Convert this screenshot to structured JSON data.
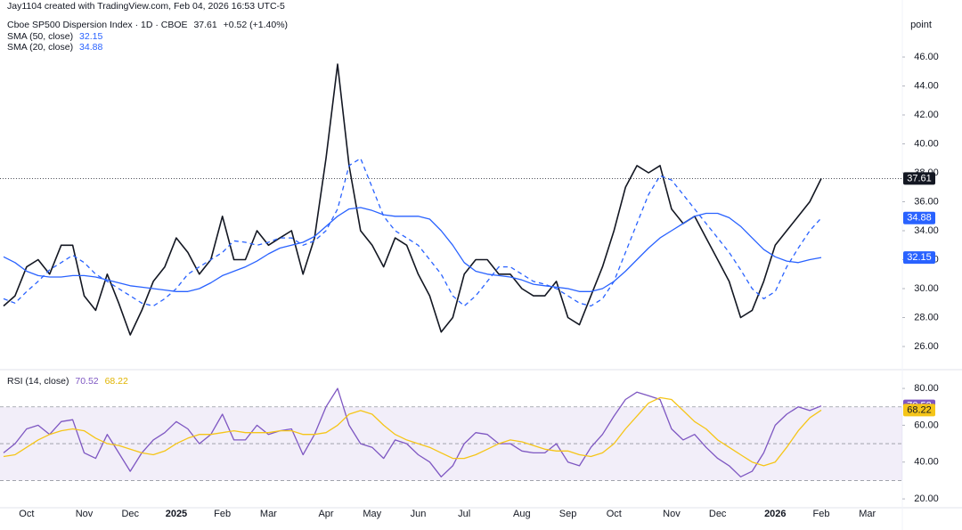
{
  "header": {
    "credit": "Jay1104 created with TradingView.com, Feb 04, 2026 16:53 UTC-5"
  },
  "chart_data": [
    {
      "type": "line",
      "change": "+0.52 (+1.40%)",
      "y_unit": "point",
      "ylim": [
        24.4,
        49.94
      ],
      "yticks": [
        {
          "value": 26,
          "label": "26.00"
        },
        {
          "value": 28,
          "label": "28.00"
        },
        {
          "value": 30,
          "label": "30.00"
        },
        {
          "value": 32,
          "label": "32.00"
        },
        {
          "value": 34,
          "label": "34.00"
        },
        {
          "value": 36,
          "label": "36.00"
        },
        {
          "value": 38,
          "label": "38.00"
        },
        {
          "value": 40,
          "label": "40.00"
        },
        {
          "value": 42,
          "label": "42.00"
        },
        {
          "value": 44,
          "label": "44.00"
        },
        {
          "value": 46,
          "label": "46.00"
        }
      ],
      "grid": false,
      "price_line": true,
      "series": [
        {
          "name": "Cboe SP500 Dispersion Index · 1D · CBOE",
          "color": "#131722",
          "dash": false,
          "values": [
            28.8,
            29.5,
            31.5,
            32.0,
            31.0,
            33.0,
            33.0,
            29.5,
            28.5,
            31.0,
            29.0,
            26.8,
            28.5,
            30.5,
            31.5,
            33.5,
            32.5,
            31.0,
            32.0,
            35.0,
            32.0,
            32.0,
            34.0,
            33.0,
            33.5,
            34.0,
            31.0,
            33.5,
            39.0,
            45.5,
            38.5,
            34.0,
            33.0,
            31.5,
            33.5,
            33.0,
            31.0,
            29.5,
            27.0,
            28.0,
            31.0,
            32.0,
            32.0,
            31.0,
            31.0,
            30.0,
            29.5,
            29.5,
            30.5,
            28.0,
            27.5,
            29.5,
            31.5,
            34.0,
            37.0,
            38.5,
            38.0,
            38.5,
            35.5,
            34.5,
            35.0,
            33.5,
            32.0,
            30.5,
            28.0,
            28.5,
            30.5,
            33.0,
            34.0,
            35.0,
            36.0,
            37.61,
            null,
            null,
            null,
            null,
            null,
            null
          ]
        },
        {
          "name": "SMA (50, close)",
          "color": "#2962ff",
          "dash": false,
          "values": [
            32.2,
            31.8,
            31.2,
            30.9,
            30.8,
            30.8,
            30.9,
            30.9,
            30.8,
            30.6,
            30.4,
            30.2,
            30.1,
            30.0,
            29.9,
            29.8,
            29.8,
            30.0,
            30.4,
            30.9,
            31.2,
            31.5,
            31.9,
            32.4,
            32.8,
            33.0,
            33.2,
            33.6,
            34.3,
            35.0,
            35.5,
            35.6,
            35.4,
            35.1,
            35.0,
            35.0,
            35.0,
            34.8,
            34.0,
            33.0,
            31.8,
            31.2,
            31.0,
            30.9,
            30.8,
            30.6,
            30.3,
            30.2,
            30.1,
            30.0,
            29.8,
            29.8,
            30.0,
            30.5,
            31.2,
            32.0,
            32.8,
            33.5,
            34.0,
            34.5,
            35.0,
            35.2,
            35.2,
            34.9,
            34.3,
            33.5,
            32.7,
            32.2,
            31.9,
            31.8,
            32.0,
            32.15,
            null,
            null,
            null,
            null,
            null,
            null
          ]
        },
        {
          "name": "SMA (20, close)",
          "color": "#2962ff",
          "dash": true,
          "values": [
            29.3,
            29.0,
            29.8,
            30.5,
            31.3,
            31.8,
            32.3,
            31.8,
            31.0,
            30.5,
            30.0,
            29.5,
            29.0,
            28.8,
            29.3,
            30.0,
            31.0,
            31.5,
            32.0,
            32.5,
            33.3,
            33.2,
            33.0,
            33.2,
            33.5,
            33.5,
            33.0,
            33.3,
            34.0,
            35.5,
            38.5,
            39.0,
            37.0,
            35.0,
            34.0,
            33.5,
            33.0,
            32.0,
            31.0,
            29.5,
            28.8,
            29.5,
            30.5,
            31.5,
            31.5,
            31.0,
            30.5,
            30.3,
            30.0,
            29.5,
            29.0,
            28.8,
            29.3,
            30.5,
            32.5,
            34.5,
            36.5,
            37.8,
            37.5,
            36.5,
            35.5,
            34.5,
            33.5,
            32.5,
            31.3,
            30.0,
            29.3,
            29.8,
            31.5,
            32.8,
            34.0,
            34.88,
            null,
            null,
            null,
            null,
            null,
            null
          ]
        }
      ]
    },
    {
      "type": "line",
      "title": "RSI (14, close)",
      "categories": [
        null,
        null,
        "Oct",
        null,
        null,
        null,
        null,
        "Nov",
        null,
        null,
        null,
        "Dec",
        null,
        null,
        null,
        "2025",
        null,
        null,
        null,
        "Feb",
        null,
        null,
        null,
        "Mar",
        null,
        null,
        null,
        null,
        "Apr",
        null,
        null,
        null,
        "May",
        null,
        null,
        null,
        "Jun",
        null,
        null,
        null,
        "Jul",
        null,
        null,
        null,
        null,
        "Aug",
        null,
        null,
        null,
        "Sep",
        null,
        null,
        null,
        "Oct",
        null,
        null,
        null,
        null,
        "Nov",
        null,
        null,
        null,
        "Dec",
        null,
        null,
        null,
        null,
        "2026",
        null,
        null,
        null,
        "Feb",
        null,
        null,
        null,
        "Mar",
        null,
        null
      ],
      "ylim": [
        15.2,
        90.2
      ],
      "yticks": [
        {
          "value": 20,
          "label": "20.00"
        },
        {
          "value": 40,
          "label": "40.00"
        },
        {
          "value": 60,
          "label": "60.00"
        },
        {
          "value": 80,
          "label": "80.00"
        }
      ],
      "bands": [
        30,
        70
      ],
      "midline": 50,
      "band_color": "#7e57c2",
      "series": [
        {
          "color": "#7e57c2",
          "values": [
            45,
            50,
            58,
            60,
            55,
            62,
            63,
            45,
            42,
            55,
            45,
            35,
            45,
            52,
            56,
            62,
            58,
            50,
            55,
            66,
            52,
            52,
            60,
            55,
            57,
            58,
            44,
            55,
            70,
            80,
            60,
            50,
            48,
            42,
            52,
            50,
            44,
            40,
            32,
            38,
            50,
            56,
            55,
            50,
            50,
            46,
            45,
            45,
            50,
            40,
            38,
            48,
            55,
            65,
            74,
            78,
            76,
            74,
            58,
            52,
            55,
            48,
            42,
            38,
            32,
            35,
            45,
            60,
            66,
            70,
            68,
            70.52,
            null,
            null,
            null,
            null,
            null,
            null
          ]
        },
        {
          "color": "#f5c518",
          "values": [
            43,
            44,
            48,
            52,
            55,
            57,
            58,
            57,
            53,
            50,
            49,
            47,
            45,
            44,
            46,
            50,
            53,
            55,
            55,
            56,
            57,
            56,
            56,
            56,
            57,
            57,
            55,
            55,
            56,
            60,
            66,
            68,
            66,
            60,
            55,
            52,
            50,
            48,
            45,
            42,
            42,
            44,
            47,
            50,
            52,
            51,
            49,
            47,
            46,
            46,
            44,
            43,
            45,
            50,
            58,
            65,
            72,
            75,
            74,
            68,
            62,
            58,
            52,
            48,
            44,
            40,
            38,
            40,
            48,
            57,
            64,
            68.22,
            null,
            null,
            null,
            null,
            null,
            null
          ]
        }
      ]
    }
  ]
}
